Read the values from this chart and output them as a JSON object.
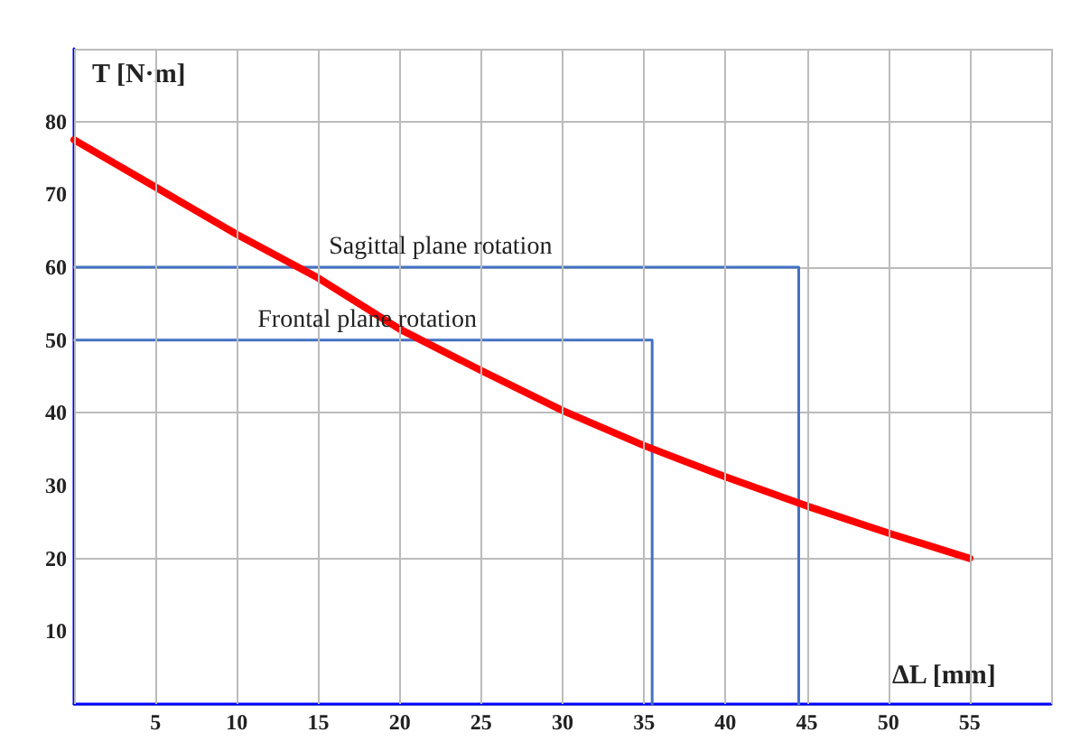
{
  "chart_data": {
    "type": "line",
    "xlabel": "ΔL [mm]",
    "ylabel": "T [N·m]",
    "xlim": [
      0,
      60
    ],
    "ylim": [
      0,
      90
    ],
    "xticks": [
      5,
      10,
      15,
      20,
      25,
      30,
      35,
      40,
      45,
      50,
      55
    ],
    "yticks": [
      10,
      20,
      30,
      40,
      50,
      60,
      70,
      80
    ],
    "grid": true,
    "marker": "none",
    "line_style": "solid",
    "series": [
      {
        "color": "#ff0000",
        "x": [
          0,
          5,
          10,
          15,
          20,
          25,
          30,
          35,
          40,
          45,
          50,
          55
        ],
        "values": [
          77.5,
          71,
          64.5,
          58.5,
          51.5,
          45.8,
          40.3,
          35.5,
          31.2,
          27.2,
          23.5,
          20
        ]
      },
      {
        "color": "#4472c4",
        "x": [
          0,
          44.5,
          44.5
        ],
        "values": [
          60,
          60,
          0
        ]
      },
      {
        "color": "#4472c4",
        "x": [
          0,
          35.5,
          35.5
        ],
        "values": [
          50,
          50,
          0
        ]
      }
    ],
    "annotations": [
      {
        "text": "Sagittal plane rotation",
        "x": 22.5,
        "y": 60
      },
      {
        "text": "Frontal plane rotation",
        "x": 18,
        "y": 50
      }
    ]
  }
}
